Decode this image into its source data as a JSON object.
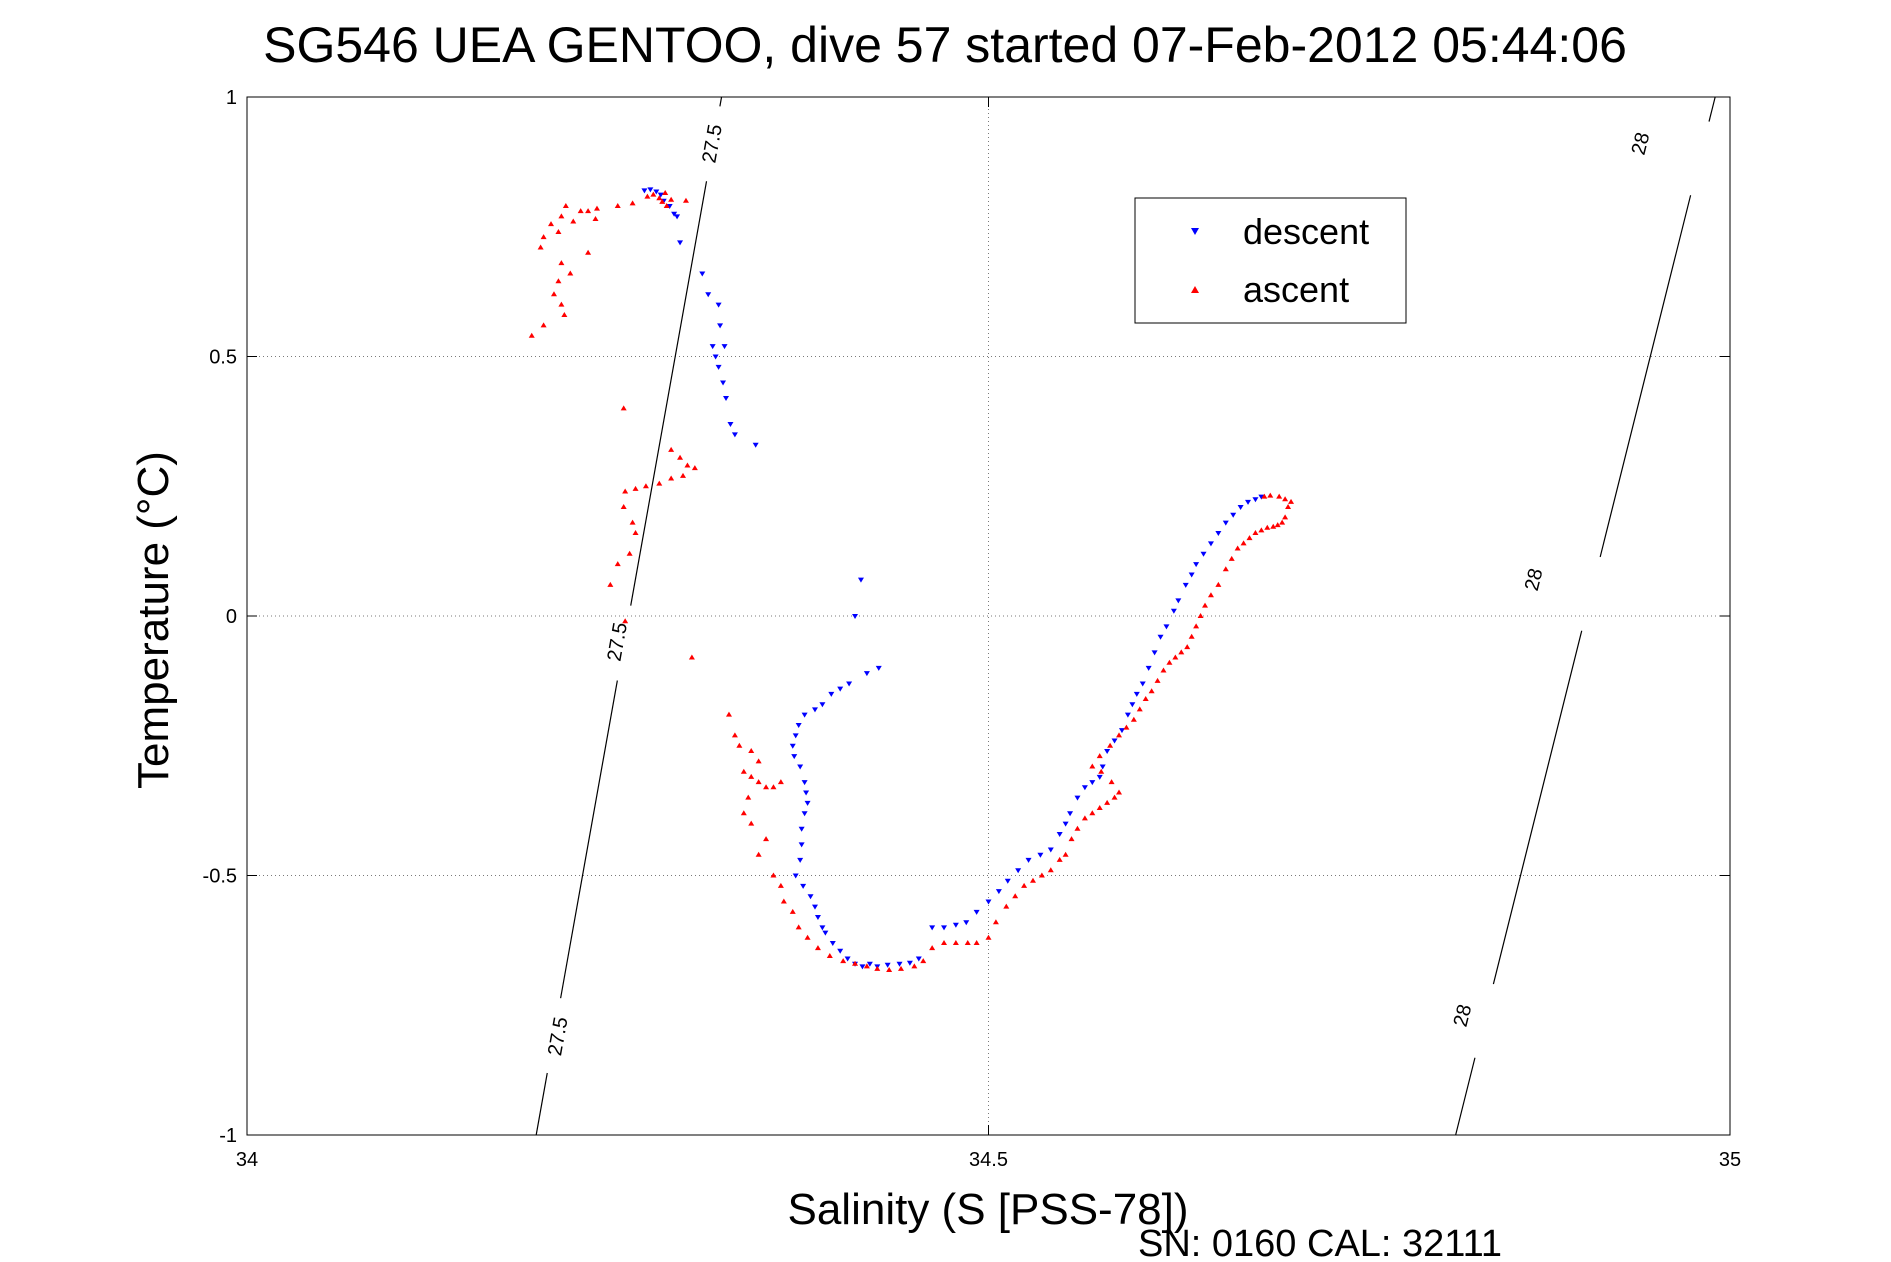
{
  "chart_data": {
    "type": "scatter",
    "title": "SG546 UEA GENTOO, dive 57 started 07-Feb-2012 05:44:06",
    "xlabel": "Salinity (S [PSS-78])",
    "ylabel": "Temperature (°C)",
    "footer": "SN: 0160  CAL: 32111",
    "xlim": [
      34,
      35
    ],
    "ylim": [
      -1,
      1
    ],
    "xticks": [
      34,
      34.5,
      35
    ],
    "xtick_labels": [
      "34",
      "34.5",
      "35"
    ],
    "yticks": [
      1,
      0.5,
      0,
      -0.5,
      -1
    ],
    "ytick_labels": [
      "1",
      "0.5",
      "0",
      "-0.5",
      "-1"
    ],
    "grid": true,
    "legend_position": "top-right",
    "series": [
      {
        "name": "descent",
        "color": "#0000ff",
        "marker": "triangle-down",
        "points": [
          [
            34.268,
            0.82
          ],
          [
            34.272,
            0.822
          ],
          [
            34.276,
            0.818
          ],
          [
            34.279,
            0.812
          ],
          [
            34.281,
            0.8
          ],
          [
            34.285,
            0.79
          ],
          [
            34.288,
            0.775
          ],
          [
            34.29,
            0.77
          ],
          [
            34.292,
            0.72
          ],
          [
            34.307,
            0.66
          ],
          [
            34.311,
            0.62
          ],
          [
            34.318,
            0.6
          ],
          [
            34.319,
            0.56
          ],
          [
            34.314,
            0.52
          ],
          [
            34.316,
            0.5
          ],
          [
            34.318,
            0.48
          ],
          [
            34.322,
            0.52
          ],
          [
            34.321,
            0.45
          ],
          [
            34.323,
            0.42
          ],
          [
            34.326,
            0.37
          ],
          [
            34.329,
            0.35
          ],
          [
            34.343,
            0.33
          ],
          [
            34.414,
            0.07
          ],
          [
            34.41,
            0.0
          ],
          [
            34.426,
            -0.1
          ],
          [
            34.418,
            -0.11
          ],
          [
            34.406,
            -0.13
          ],
          [
            34.4,
            -0.14
          ],
          [
            34.394,
            -0.15
          ],
          [
            34.388,
            -0.17
          ],
          [
            34.383,
            -0.18
          ],
          [
            34.376,
            -0.19
          ],
          [
            34.372,
            -0.21
          ],
          [
            34.37,
            -0.23
          ],
          [
            34.368,
            -0.25
          ],
          [
            34.369,
            -0.27
          ],
          [
            34.373,
            -0.29
          ],
          [
            34.376,
            -0.32
          ],
          [
            34.377,
            -0.34
          ],
          [
            34.378,
            -0.36
          ],
          [
            34.376,
            -0.38
          ],
          [
            34.374,
            -0.41
          ],
          [
            34.374,
            -0.44
          ],
          [
            34.373,
            -0.47
          ],
          [
            34.37,
            -0.5
          ],
          [
            34.375,
            -0.52
          ],
          [
            34.38,
            -0.54
          ],
          [
            34.383,
            -0.56
          ],
          [
            34.385,
            -0.58
          ],
          [
            34.388,
            -0.6
          ],
          [
            34.39,
            -0.61
          ],
          [
            34.395,
            -0.63
          ],
          [
            34.4,
            -0.645
          ],
          [
            34.405,
            -0.66
          ],
          [
            34.41,
            -0.67
          ],
          [
            34.415,
            -0.675
          ],
          [
            34.42,
            -0.67
          ],
          [
            34.425,
            -0.675
          ],
          [
            34.432,
            -0.672
          ],
          [
            34.44,
            -0.67
          ],
          [
            34.447,
            -0.668
          ],
          [
            34.453,
            -0.66
          ],
          [
            34.462,
            -0.6
          ],
          [
            34.47,
            -0.6
          ],
          [
            34.478,
            -0.595
          ],
          [
            34.485,
            -0.59
          ],
          [
            34.492,
            -0.57
          ],
          [
            34.5,
            -0.55
          ],
          [
            34.507,
            -0.53
          ],
          [
            34.513,
            -0.51
          ],
          [
            34.52,
            -0.49
          ],
          [
            34.527,
            -0.47
          ],
          [
            34.535,
            -0.46
          ],
          [
            34.542,
            -0.45
          ],
          [
            34.548,
            -0.42
          ],
          [
            34.552,
            -0.4
          ],
          [
            34.555,
            -0.38
          ],
          [
            34.56,
            -0.35
          ],
          [
            34.565,
            -0.33
          ],
          [
            34.57,
            -0.32
          ],
          [
            34.575,
            -0.31
          ],
          [
            34.577,
            -0.29
          ],
          [
            34.58,
            -0.26
          ],
          [
            34.585,
            -0.24
          ],
          [
            34.59,
            -0.22
          ],
          [
            34.594,
            -0.19
          ],
          [
            34.597,
            -0.17
          ],
          [
            34.6,
            -0.15
          ],
          [
            34.604,
            -0.13
          ],
          [
            34.608,
            -0.1
          ],
          [
            34.612,
            -0.07
          ],
          [
            34.616,
            -0.04
          ],
          [
            34.62,
            -0.02
          ],
          [
            34.625,
            0.01
          ],
          [
            34.628,
            0.03
          ],
          [
            34.633,
            0.06
          ],
          [
            34.637,
            0.08
          ],
          [
            34.64,
            0.1
          ],
          [
            34.645,
            0.12
          ],
          [
            34.65,
            0.14
          ],
          [
            34.655,
            0.16
          ],
          [
            34.66,
            0.18
          ],
          [
            34.665,
            0.195
          ],
          [
            34.67,
            0.21
          ],
          [
            34.675,
            0.22
          ],
          [
            34.68,
            0.225
          ],
          [
            34.684,
            0.23
          ]
        ]
      },
      {
        "name": "ascent",
        "color": "#ff0000",
        "marker": "triangle-up",
        "points": [
          [
            34.27,
            0.808
          ],
          [
            34.274,
            0.812
          ],
          [
            34.278,
            0.805
          ],
          [
            34.28,
            0.798
          ],
          [
            34.283,
            0.79
          ],
          [
            34.286,
            0.802
          ],
          [
            34.282,
            0.815
          ],
          [
            34.26,
            0.795
          ],
          [
            34.25,
            0.79
          ],
          [
            34.236,
            0.785
          ],
          [
            34.225,
            0.78
          ],
          [
            34.215,
            0.79
          ],
          [
            34.23,
            0.78
          ],
          [
            34.296,
            0.8
          ],
          [
            34.235,
            0.765
          ],
          [
            34.22,
            0.76
          ],
          [
            34.212,
            0.77
          ],
          [
            34.205,
            0.755
          ],
          [
            34.21,
            0.74
          ],
          [
            34.2,
            0.73
          ],
          [
            34.198,
            0.71
          ],
          [
            34.23,
            0.7
          ],
          [
            34.212,
            0.68
          ],
          [
            34.218,
            0.66
          ],
          [
            34.21,
            0.645
          ],
          [
            34.207,
            0.62
          ],
          [
            34.212,
            0.6
          ],
          [
            34.214,
            0.58
          ],
          [
            34.2,
            0.56
          ],
          [
            34.192,
            0.54
          ],
          [
            34.254,
            0.4
          ],
          [
            34.286,
            0.32
          ],
          [
            34.292,
            0.305
          ],
          [
            34.297,
            0.29
          ],
          [
            34.302,
            0.285
          ],
          [
            34.294,
            0.27
          ],
          [
            34.286,
            0.265
          ],
          [
            34.278,
            0.255
          ],
          [
            34.269,
            0.25
          ],
          [
            34.262,
            0.245
          ],
          [
            34.255,
            0.24
          ],
          [
            34.254,
            0.21
          ],
          [
            34.26,
            0.18
          ],
          [
            34.262,
            0.16
          ],
          [
            34.258,
            0.12
          ],
          [
            34.25,
            0.1
          ],
          [
            34.245,
            0.06
          ],
          [
            34.255,
            -0.01
          ],
          [
            34.3,
            -0.08
          ],
          [
            34.325,
            -0.19
          ],
          [
            34.329,
            -0.23
          ],
          [
            34.332,
            -0.25
          ],
          [
            34.34,
            -0.26
          ],
          [
            34.345,
            -0.28
          ],
          [
            34.335,
            -0.3
          ],
          [
            34.34,
            -0.31
          ],
          [
            34.345,
            -0.32
          ],
          [
            34.35,
            -0.33
          ],
          [
            34.355,
            -0.33
          ],
          [
            34.36,
            -0.32
          ],
          [
            34.338,
            -0.35
          ],
          [
            34.335,
            -0.38
          ],
          [
            34.34,
            -0.4
          ],
          [
            34.35,
            -0.43
          ],
          [
            34.345,
            -0.46
          ],
          [
            34.355,
            -0.5
          ],
          [
            34.36,
            -0.52
          ],
          [
            34.362,
            -0.55
          ],
          [
            34.368,
            -0.57
          ],
          [
            34.372,
            -0.6
          ],
          [
            34.378,
            -0.62
          ],
          [
            34.385,
            -0.64
          ],
          [
            34.393,
            -0.655
          ],
          [
            34.402,
            -0.665
          ],
          [
            34.41,
            -0.67
          ],
          [
            34.418,
            -0.675
          ],
          [
            34.425,
            -0.68
          ],
          [
            34.433,
            -0.682
          ],
          [
            34.441,
            -0.68
          ],
          [
            34.45,
            -0.675
          ],
          [
            34.456,
            -0.665
          ],
          [
            34.462,
            -0.64
          ],
          [
            34.47,
            -0.63
          ],
          [
            34.478,
            -0.63
          ],
          [
            34.486,
            -0.63
          ],
          [
            34.492,
            -0.63
          ],
          [
            34.5,
            -0.62
          ],
          [
            34.505,
            -0.59
          ],
          [
            34.512,
            -0.56
          ],
          [
            34.518,
            -0.54
          ],
          [
            34.524,
            -0.52
          ],
          [
            34.53,
            -0.51
          ],
          [
            34.536,
            -0.5
          ],
          [
            34.542,
            -0.49
          ],
          [
            34.548,
            -0.47
          ],
          [
            34.552,
            -0.46
          ],
          [
            34.556,
            -0.43
          ],
          [
            34.56,
            -0.41
          ],
          [
            34.565,
            -0.39
          ],
          [
            34.57,
            -0.38
          ],
          [
            34.575,
            -0.37
          ],
          [
            34.58,
            -0.36
          ],
          [
            34.585,
            -0.35
          ],
          [
            34.588,
            -0.34
          ],
          [
            34.583,
            -0.32
          ],
          [
            34.576,
            -0.3
          ],
          [
            34.57,
            -0.29
          ],
          [
            34.575,
            -0.27
          ],
          [
            34.582,
            -0.25
          ],
          [
            34.588,
            -0.23
          ],
          [
            34.593,
            -0.215
          ],
          [
            34.598,
            -0.2
          ],
          [
            34.602,
            -0.18
          ],
          [
            34.606,
            -0.16
          ],
          [
            34.61,
            -0.145
          ],
          [
            34.614,
            -0.125
          ],
          [
            34.618,
            -0.105
          ],
          [
            34.622,
            -0.09
          ],
          [
            34.626,
            -0.08
          ],
          [
            34.63,
            -0.07
          ],
          [
            34.634,
            -0.06
          ],
          [
            34.637,
            -0.04
          ],
          [
            34.64,
            -0.02
          ],
          [
            34.643,
            0.0
          ],
          [
            34.646,
            0.02
          ],
          [
            34.65,
            0.04
          ],
          [
            34.655,
            0.06
          ],
          [
            34.66,
            0.09
          ],
          [
            34.664,
            0.11
          ],
          [
            34.668,
            0.13
          ],
          [
            34.672,
            0.14
          ],
          [
            34.676,
            0.15
          ],
          [
            34.68,
            0.16
          ],
          [
            34.684,
            0.165
          ],
          [
            34.688,
            0.17
          ],
          [
            34.692,
            0.172
          ],
          [
            34.695,
            0.175
          ],
          [
            34.698,
            0.18
          ],
          [
            34.7,
            0.19
          ],
          [
            34.702,
            0.21
          ],
          [
            34.704,
            0.22
          ],
          [
            34.686,
            0.23
          ],
          [
            34.69,
            0.232
          ],
          [
            34.696,
            0.23
          ],
          [
            34.7,
            0.225
          ]
        ]
      }
    ],
    "density_contours": [
      {
        "label": "27.5",
        "points": [
          [
            34.195,
            -1.0
          ],
          [
            34.32,
            1.0
          ]
        ],
        "label_positions": [
          [
            34.21,
            -0.81
          ],
          [
            34.25,
            -0.05
          ],
          [
            34.314,
            0.91
          ]
        ]
      },
      {
        "label": "28",
        "points": [
          [
            34.815,
            -1.0
          ],
          [
            34.99,
            1.0
          ]
        ],
        "label_positions": [
          [
            34.82,
            -0.77
          ],
          [
            34.868,
            0.07
          ],
          [
            34.94,
            0.91
          ]
        ]
      }
    ]
  }
}
